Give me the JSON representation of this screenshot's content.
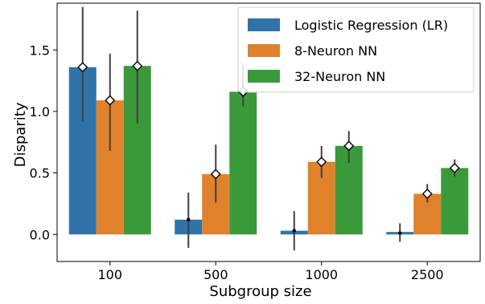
{
  "chart_data": {
    "type": "bar",
    "title": "",
    "xlabel": "Subgroup size",
    "ylabel": "Disparity",
    "categories": [
      "100",
      "500",
      "1000",
      "2500"
    ],
    "ylim": [
      -0.22,
      1.88
    ],
    "yticks": [
      0.0,
      0.5,
      1.0,
      1.5
    ],
    "ytick_labels": [
      "0.0",
      "0.5",
      "1.0",
      "1.5"
    ],
    "grid": false,
    "legend_position": "top-right",
    "series": [
      {
        "name": "Logistic Regression (LR)",
        "color": "#2f73a8",
        "values": [
          1.36,
          0.12,
          0.03,
          0.02
        ],
        "means": [
          1.36,
          0.12,
          0.03,
          0.01
        ],
        "err_low": [
          0.92,
          -0.11,
          -0.13,
          -0.06
        ],
        "err_high": [
          1.85,
          0.34,
          0.19,
          0.09
        ],
        "mean_marker": [
          "diamond",
          "dot",
          "dot",
          "dot"
        ]
      },
      {
        "name": "8-Neuron NN",
        "color": "#e0812b",
        "values": [
          1.09,
          0.49,
          0.59,
          0.33
        ],
        "means": [
          1.09,
          0.49,
          0.59,
          0.33
        ],
        "err_low": [
          0.68,
          0.26,
          0.46,
          0.26
        ],
        "err_high": [
          1.47,
          0.73,
          0.72,
          0.41
        ],
        "mean_marker": [
          "diamond",
          "diamond",
          "diamond",
          "diamond"
        ]
      },
      {
        "name": "32-Neuron NN",
        "color": "#3a9a3a",
        "values": [
          1.37,
          1.16,
          0.72,
          0.54
        ],
        "means": [
          1.37,
          1.16,
          0.72,
          0.54
        ],
        "err_low": [
          0.9,
          1.04,
          0.58,
          0.47
        ],
        "err_high": [
          1.82,
          1.38,
          0.84,
          0.61
        ],
        "mean_marker": [
          "diamond",
          "diamond",
          "diamond",
          "diamond"
        ]
      }
    ]
  }
}
